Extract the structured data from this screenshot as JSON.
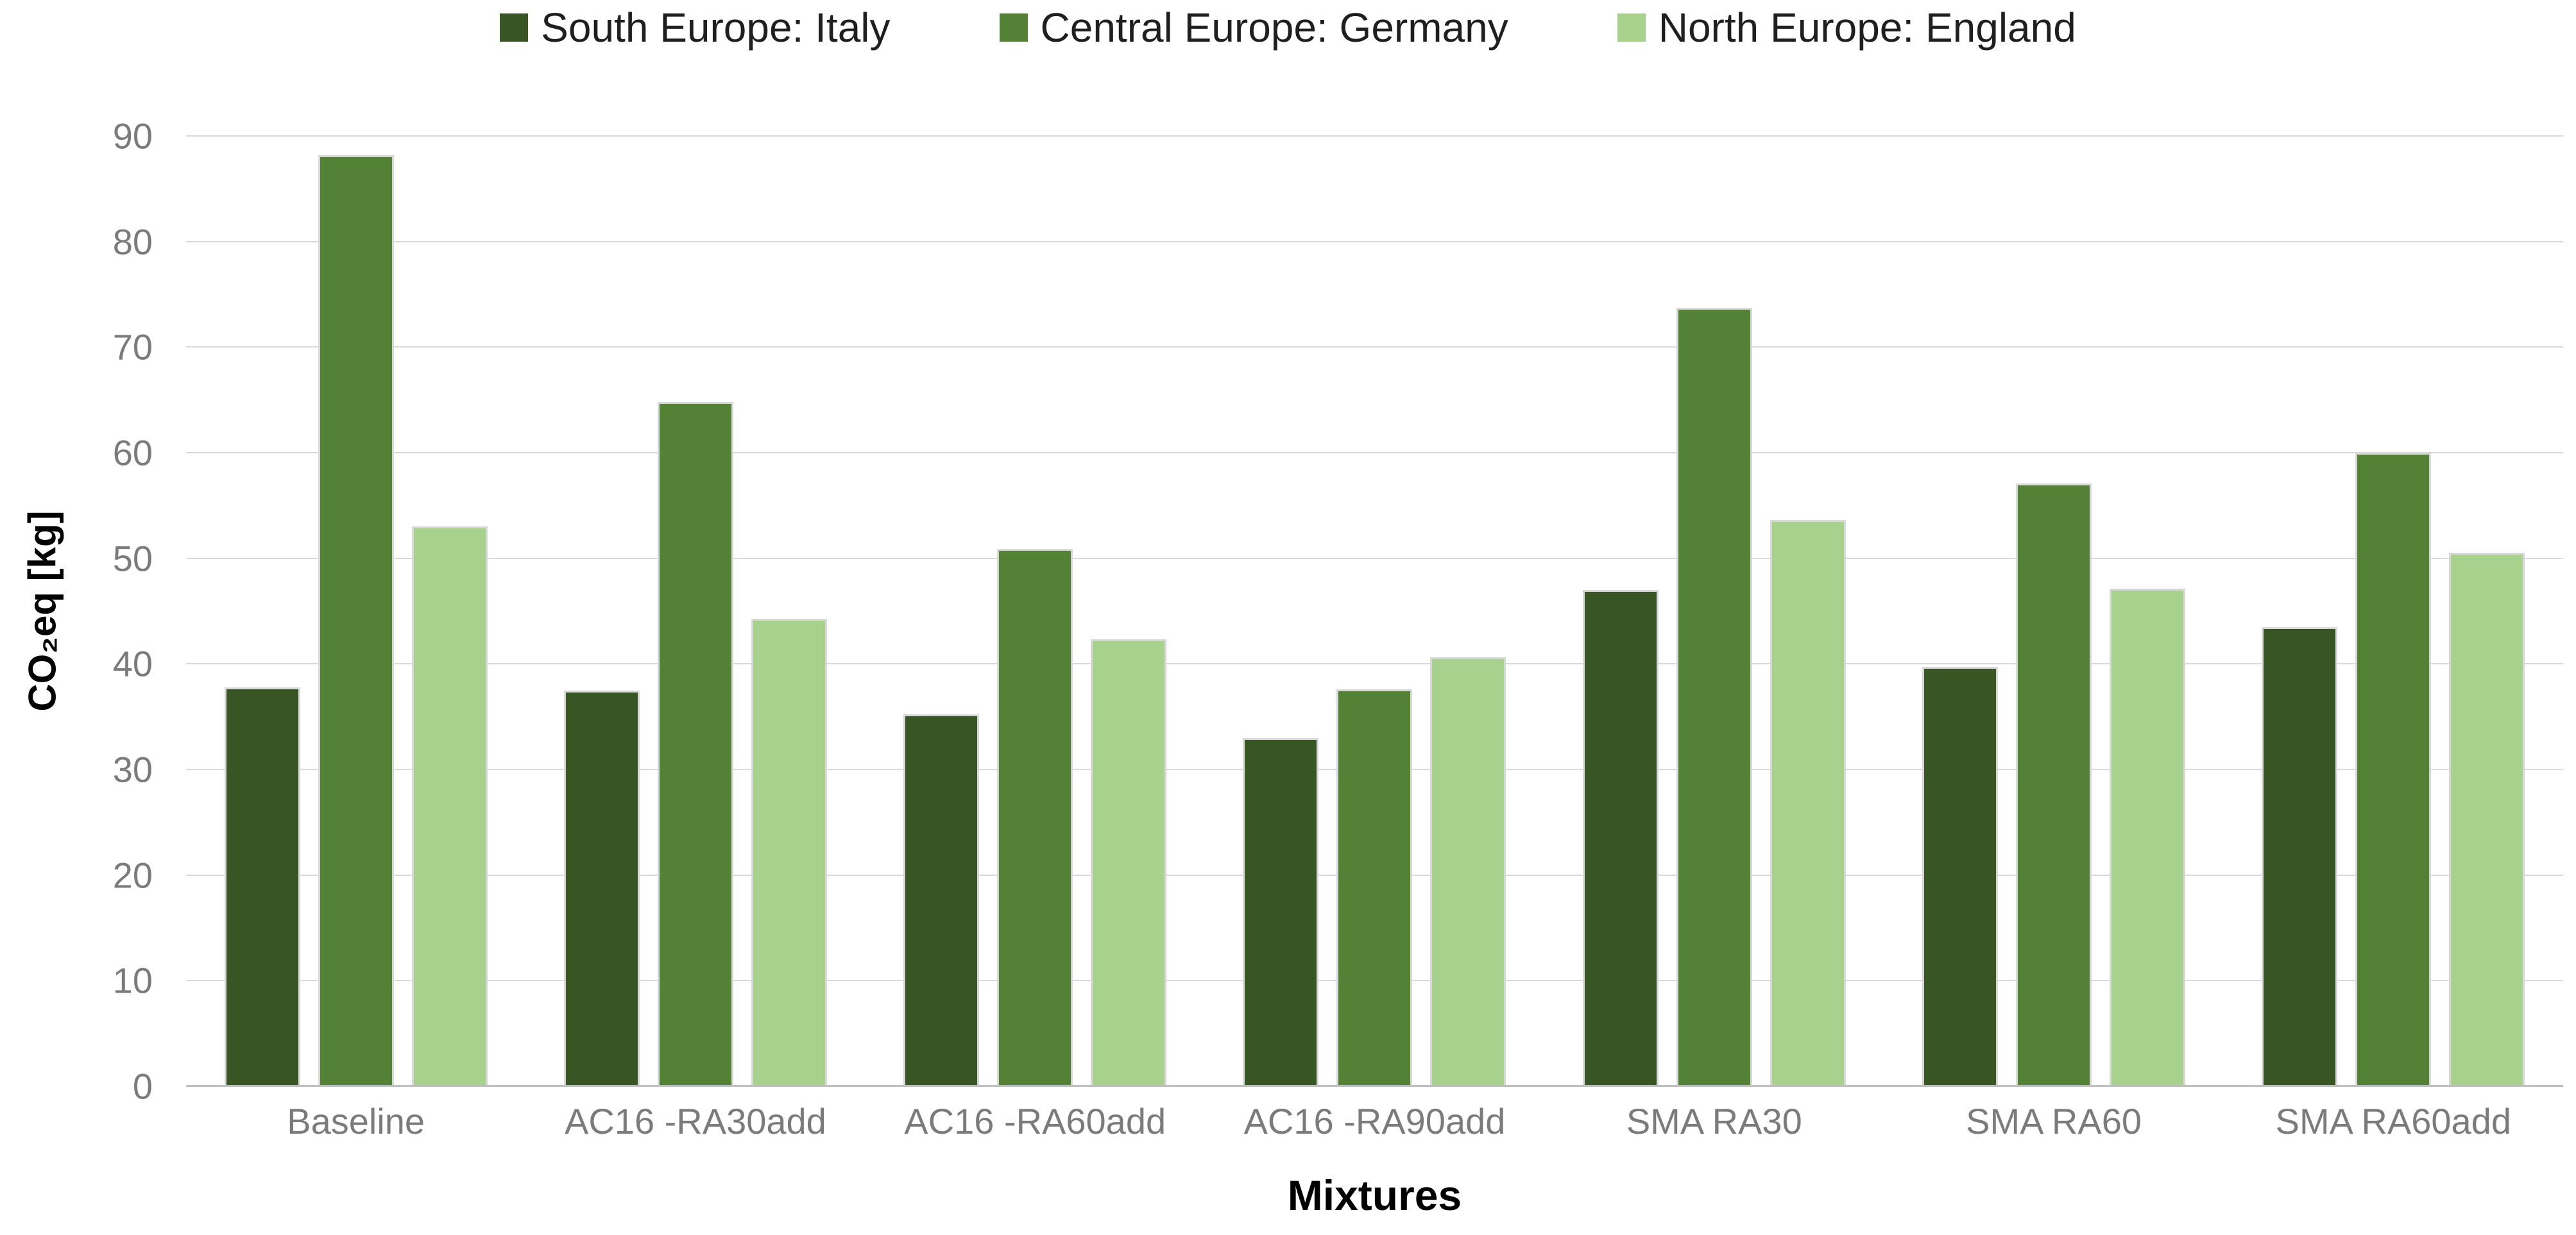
{
  "colors": {
    "background": "#ffffff",
    "grid": "#d9d9d9",
    "axis_line": "#bfbfbf",
    "axis_text": "#7b7b7b",
    "legend_text": "#1f1f1f",
    "bar_outline": "#d8d8d8",
    "title_text": "#000000",
    "series_dark_green": "#375623",
    "series_medium_green": "#538135",
    "series_light_green": "#A9D18E"
  },
  "legend": {
    "position": "top",
    "items": [
      {
        "label": "South Europe: Italy",
        "color": "#375623"
      },
      {
        "label": "Central Europe: Germany",
        "color": "#538135"
      },
      {
        "label": "North Europe: England",
        "color": "#A9D18E"
      }
    ]
  },
  "chart_data": {
    "type": "bar",
    "title": "",
    "xlabel": "Mixtures",
    "ylabel": "CO₂eq [kg]",
    "ylim": [
      0,
      90
    ],
    "ytick_step": 10,
    "ytick_labels": [
      "0",
      "10",
      "20",
      "30",
      "40",
      "50",
      "60",
      "70",
      "80",
      "90"
    ],
    "grid": true,
    "legend_position": "top",
    "categories": [
      "Baseline",
      "AC16 -RA30add",
      "AC16 -RA60add",
      "AC16 -RA90add",
      "SMA RA30",
      "SMA RA60",
      "SMA RA60add"
    ],
    "series": [
      {
        "name": "South Europe: Italy",
        "color": "#375623",
        "values": [
          37.8,
          37.5,
          35.2,
          33.0,
          47.0,
          39.7,
          43.5
        ]
      },
      {
        "name": "Central Europe: Germany",
        "color": "#538135",
        "values": [
          88.2,
          64.8,
          50.9,
          37.6,
          73.7,
          57.1,
          60.0
        ]
      },
      {
        "name": "North Europe: England",
        "color": "#A9D18E",
        "values": [
          53.0,
          44.3,
          42.3,
          40.6,
          53.6,
          47.1,
          50.5
        ]
      }
    ]
  }
}
